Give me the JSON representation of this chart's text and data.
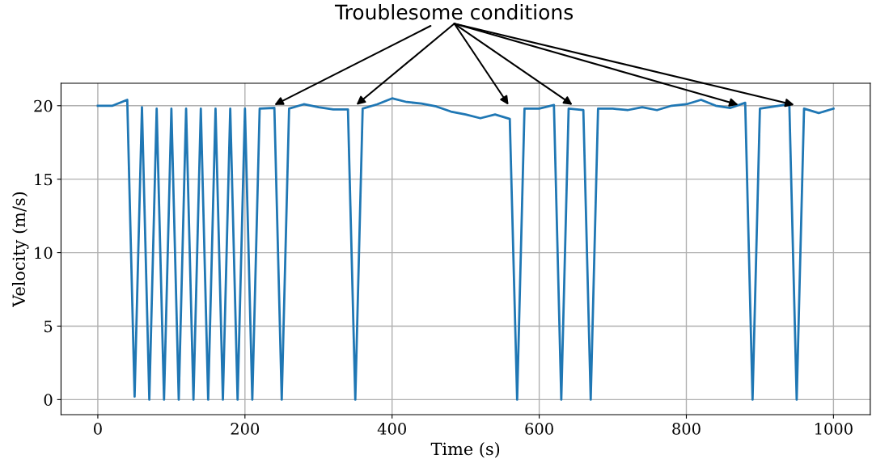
{
  "chart_data": {
    "type": "line",
    "xlabel": "Time (s)",
    "ylabel": "Velocity (m/s)",
    "x": [
      0,
      20,
      40,
      50,
      60,
      70,
      80,
      90,
      100,
      110,
      120,
      130,
      140,
      150,
      160,
      170,
      180,
      190,
      200,
      210,
      220,
      240,
      250,
      260,
      280,
      300,
      320,
      340,
      350,
      360,
      380,
      400,
      420,
      440,
      460,
      480,
      500,
      520,
      540,
      560,
      570,
      580,
      600,
      620,
      630,
      640,
      660,
      670,
      680,
      700,
      720,
      740,
      760,
      780,
      800,
      820,
      840,
      860,
      880,
      890,
      900,
      920,
      940,
      950,
      960,
      980,
      1000
    ],
    "series": [
      {
        "color": "#1f77b4",
        "values": [
          20,
          20,
          20.4,
          0.2,
          19.9,
          0,
          19.8,
          0,
          19.8,
          0,
          19.8,
          0,
          19.8,
          0,
          19.8,
          0,
          19.8,
          0,
          19.8,
          0,
          19.8,
          19.85,
          0,
          19.8,
          20.1,
          19.9,
          19.75,
          19.75,
          0,
          19.8,
          20.1,
          20.5,
          20.25,
          20.15,
          19.95,
          19.6,
          19.4,
          19.15,
          19.4,
          19.1,
          0,
          19.8,
          19.8,
          20.05,
          0,
          19.8,
          19.7,
          0,
          19.8,
          19.8,
          19.7,
          19.9,
          19.7,
          20,
          20.1,
          20.4,
          20,
          19.85,
          20.2,
          0,
          19.8,
          19.95,
          20.1,
          0,
          19.8,
          19.5,
          19.8
        ]
      }
    ],
    "xlim": [
      -50,
      1050
    ],
    "ylim": [
      -1.025,
      21.525
    ],
    "xticks": [
      0,
      200,
      400,
      600,
      800,
      1000
    ],
    "yticks": [
      0,
      5,
      10,
      15,
      20
    ],
    "grid": true,
    "marker": "none",
    "line_style": "solid",
    "annotations": [
      {
        "text": "Troublesome conditions",
        "x": 240,
        "y": 20.05
      }
    ]
  }
}
